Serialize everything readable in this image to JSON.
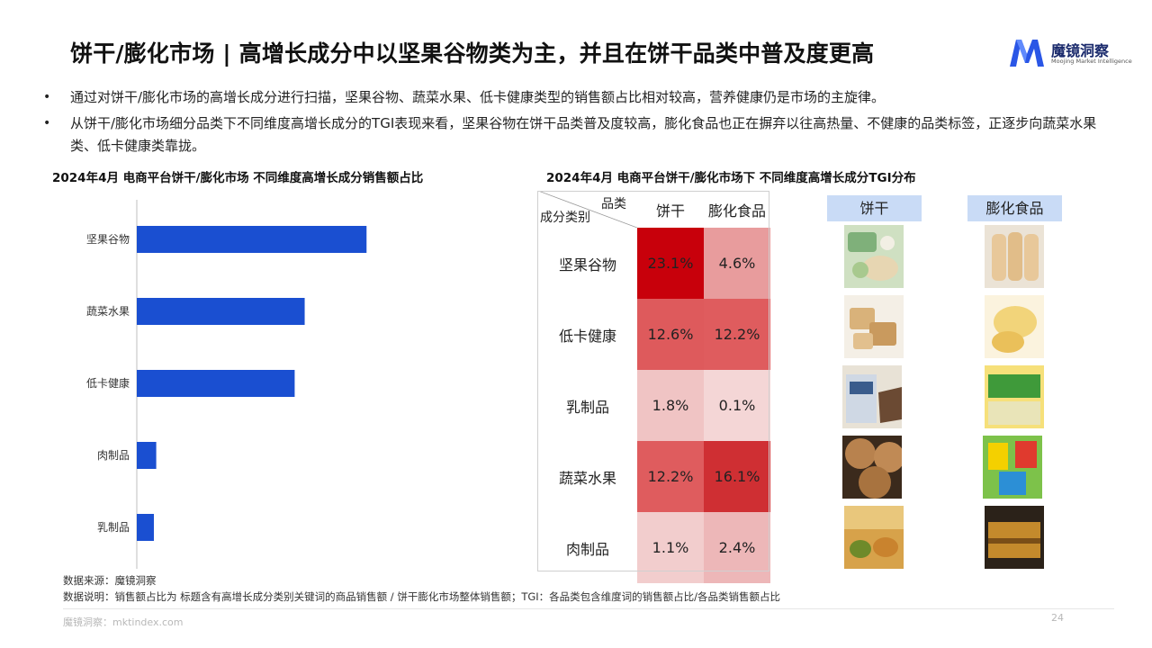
{
  "header": {
    "title": "饼干/膨化市场 | 高增长成分中以坚果谷物类为主，并且在饼干品类中普及度更高",
    "logo_brand": "魔镜洞察",
    "logo_sub": "Moojing Market Intelligence",
    "logo_color": "#2a56e6"
  },
  "bullets": [
    {
      "symbol": "•",
      "text": "通过对饼干/膨化市场的高增长成分进行扫描，坚果谷物、蔬菜水果、低卡健康类型的销售额占比相对较高，营养健康仍是市场的主旋律。"
    },
    {
      "symbol": "•",
      "text": "从饼干/膨化市场细分品类下不同维度高增长成分的TGI表现来看，坚果谷物在饼干品类普及度较高，膨化食品也正在摒弃以往高热量、不健康的品类标签，正逐步向蔬菜水果类、低卡健康类靠拢。"
    }
  ],
  "left_chart": {
    "section_title": "2024年4月 电商平台饼干/膨化市场 不同维度高增长成分销售额占比"
  },
  "chart_data": {
    "type": "bar",
    "orientation": "horizontal",
    "title": "2024年4月 电商平台饼干/膨化市场 不同维度高增长成分销售额占比",
    "categories": [
      "坚果谷物",
      "蔬菜水果",
      "低卡健康",
      "肉制品",
      "乳制品"
    ],
    "values": [
      0.39,
      0.285,
      0.268,
      0.033,
      0.029
    ],
    "xlim": [
      0,
      0.55
    ],
    "bar_color": "#1a4fd1",
    "value_labels_shown": false,
    "grid": false
  },
  "right_table": {
    "section_title": "2024年4月 电商平台饼干/膨化市场下 不同维度高增长成分TGI分布",
    "corner_top": "品类",
    "corner_bottom": "成分类别",
    "columns": [
      "饼干",
      "膨化食品"
    ],
    "rows": [
      {
        "label": "坚果谷物",
        "values": [
          "23.1%",
          "4.6%"
        ],
        "colors": [
          "#c8000b",
          "#e89c9d"
        ]
      },
      {
        "label": "低卡健康",
        "values": [
          "12.6%",
          "12.2%"
        ],
        "colors": [
          "#de5a5c",
          "#df5c5e"
        ]
      },
      {
        "label": "乳制品",
        "values": [
          "1.8%",
          "0.1%"
        ],
        "colors": [
          "#f0c4c4",
          "#f4d6d6"
        ]
      },
      {
        "label": "蔬菜水果",
        "values": [
          "12.2%",
          "16.1%"
        ],
        "colors": [
          "#df5c5e",
          "#cf2f33"
        ]
      },
      {
        "label": "肉制品",
        "values": [
          "1.1%",
          "2.4%"
        ],
        "colors": [
          "#f2cdcd",
          "#edb7b8"
        ]
      }
    ]
  },
  "product_columns": {
    "headers": [
      "饼干",
      "膨化食品"
    ]
  },
  "footer": {
    "source": "数据来源：魔镜洞察",
    "note": "数据说明：销售额占比为 标题含有高增长成分类别关键词的商品销售额 / 饼干膨化市场整体销售额；TGI：各品类包含维度词的销售额占比/各品类销售额占比",
    "site": "魔镜洞察：mktindex.com",
    "page_number": "24"
  }
}
